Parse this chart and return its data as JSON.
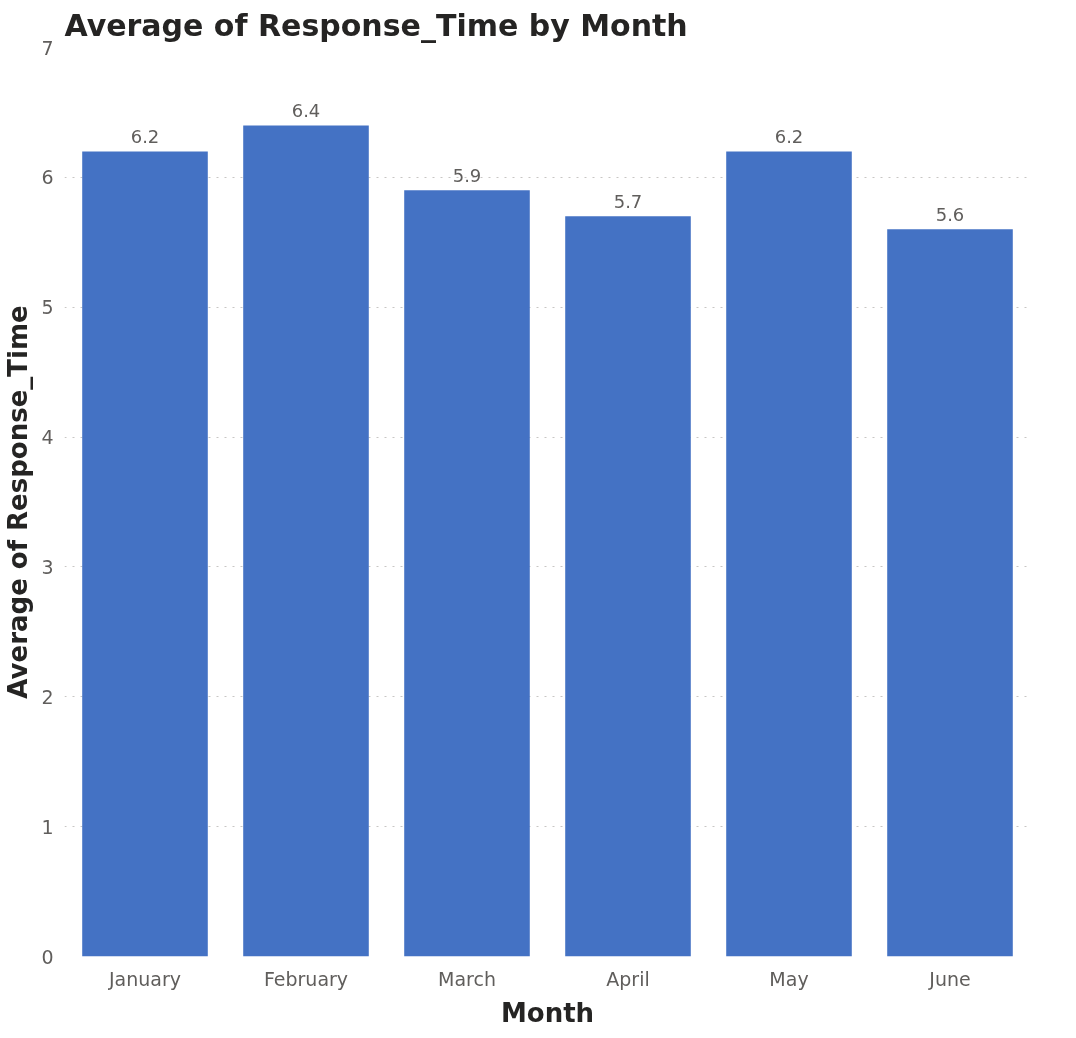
{
  "chart_data": {
    "type": "bar",
    "title": "Average of Response_Time by Month",
    "xlabel": "Month",
    "ylabel": "Average of Response_Time",
    "categories": [
      "January",
      "February",
      "March",
      "April",
      "May",
      "June"
    ],
    "values": [
      6.2,
      6.4,
      5.9,
      5.7,
      6.2,
      5.6
    ],
    "color": "#4472c4",
    "ylim": [
      0,
      7
    ],
    "yticks": [
      0,
      1,
      2,
      3,
      4,
      5,
      6,
      7
    ],
    "grid": "y",
    "data_labels": true
  }
}
